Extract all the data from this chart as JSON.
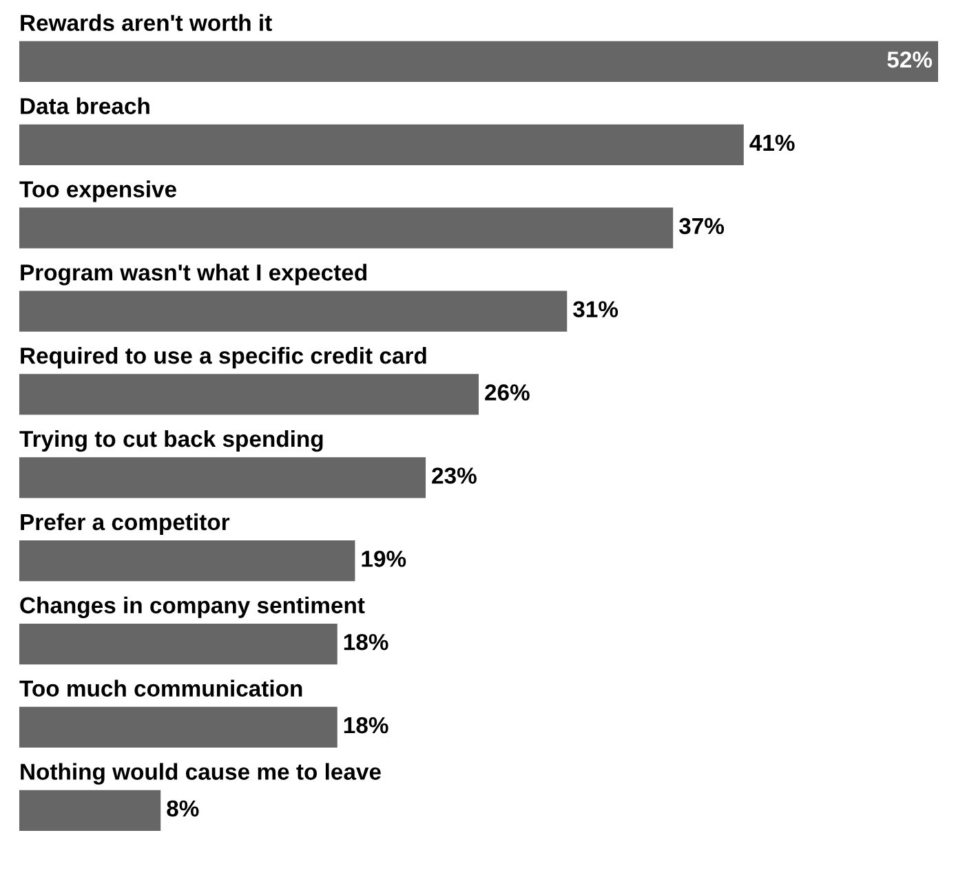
{
  "chart_data": {
    "type": "bar",
    "orientation": "horizontal",
    "categories": [
      "Rewards aren't worth it",
      "Data breach",
      "Too expensive",
      "Program wasn't what I expected",
      "Required to use a specific credit card",
      "Trying to cut back spending",
      "Prefer a competitor",
      "Changes in company sentiment",
      "Too much communication",
      "Nothing would cause me to leave"
    ],
    "values": [
      52,
      41,
      37,
      31,
      26,
      23,
      19,
      18,
      18,
      8
    ],
    "value_labels": [
      "52%",
      "41%",
      "37%",
      "31%",
      "26%",
      "23%",
      "19%",
      "18%",
      "18%",
      "8%"
    ],
    "color": "#666666",
    "tick_labels": false
  }
}
